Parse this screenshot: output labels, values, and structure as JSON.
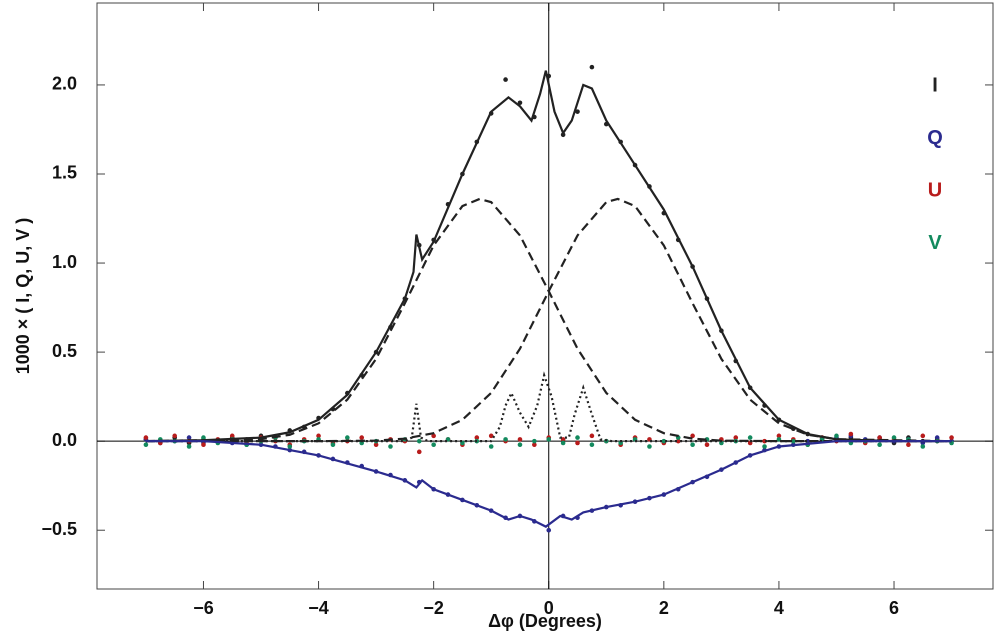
{
  "chart_data": {
    "type": "scatter",
    "x_label": "Δφ  (Degrees)",
    "y_label": "1000 × ( I, Q, U, V )",
    "xlim": [
      -7.85,
      7.72
    ],
    "ylim": [
      -0.83,
      2.46
    ],
    "xticks": [
      {
        "value": -6,
        "label": "−6"
      },
      {
        "value": -4,
        "label": "−4"
      },
      {
        "value": -2,
        "label": "−2"
      },
      0,
      2,
      4,
      6
    ],
    "yticks": [
      {
        "value": -0.5,
        "label": "−0.5"
      },
      {
        "value": 0,
        "label": "0.0"
      },
      0.5,
      {
        "value": 1,
        "label": "1.0"
      },
      1.5,
      {
        "value": 2,
        "label": "2.0"
      }
    ],
    "legend": "top-right",
    "x": [
      -7,
      -6.75,
      -6.5,
      -6.25,
      -6,
      -5.75,
      -5.5,
      -5.25,
      -5,
      -4.75,
      -4.5,
      -4.25,
      -4,
      -3.75,
      -3.5,
      -3.25,
      -3,
      -2.75,
      -2.5,
      -2.25,
      -2,
      -1.75,
      -1.5,
      -1.25,
      -1,
      -0.75,
      -0.5,
      -0.25,
      0,
      0.25,
      0.5,
      0.75,
      1,
      1.25,
      1.5,
      1.75,
      2,
      2.25,
      2.5,
      2.75,
      3,
      3.25,
      3.5,
      3.75,
      4,
      4.25,
      4.5,
      4.75,
      5,
      5.25,
      5.5,
      5.75,
      6,
      6.25,
      6.5,
      6.75,
      7
    ],
    "series": [
      {
        "name": "I",
        "color": "#222222",
        "mode": "points",
        "values": [
          0.01,
          0,
          0.02,
          -0.01,
          0.01,
          0,
          0.02,
          0.01,
          0.03,
          0.02,
          0.06,
          0.08,
          0.13,
          0.18,
          0.27,
          0.37,
          0.5,
          0.64,
          0.8,
          1.1,
          1.13,
          1.33,
          1.5,
          1.68,
          1.84,
          2.03,
          1.9,
          1.82,
          2.05,
          1.72,
          1.85,
          2.1,
          1.78,
          1.68,
          1.55,
          1.43,
          1.28,
          1.13,
          0.98,
          0.8,
          0.62,
          0.45,
          0.3,
          0.2,
          0.12,
          0.07,
          0.04,
          0.02,
          0.01,
          0.02,
          0,
          0.01,
          -0.01,
          0.02,
          0,
          0.01,
          0
        ]
      },
      {
        "name": "Q",
        "color": "#2b2b8f",
        "mode": "points",
        "values": [
          0.01,
          -0.01,
          0,
          0.02,
          -0.01,
          0,
          -0.01,
          -0.02,
          -0.02,
          -0.03,
          -0.05,
          -0.06,
          -0.08,
          -0.1,
          -0.12,
          -0.14,
          -0.17,
          -0.19,
          -0.22,
          -0.23,
          -0.27,
          -0.3,
          -0.33,
          -0.36,
          -0.39,
          -0.43,
          -0.42,
          -0.45,
          -0.5,
          -0.42,
          -0.43,
          -0.39,
          -0.37,
          -0.36,
          -0.34,
          -0.32,
          -0.3,
          -0.27,
          -0.23,
          -0.2,
          -0.16,
          -0.12,
          -0.08,
          -0.05,
          -0.03,
          -0.02,
          0,
          0.01,
          0.02,
          0.03,
          0.01,
          0.02,
          0,
          0.01,
          -0.01,
          0.02,
          0
        ]
      },
      {
        "name": "U",
        "color": "#b81c1c",
        "mode": "points",
        "values": [
          0.02,
          -0.01,
          0.03,
          0,
          -0.02,
          0.01,
          0.03,
          -0.01,
          0.02,
          0,
          -0.02,
          0.01,
          0.03,
          -0.01,
          0,
          0.02,
          -0.02,
          0.01,
          0,
          -0.06,
          0.03,
          0.01,
          -0.02,
          0.02,
          0.03,
          0,
          0.01,
          -0.02,
          0.02,
          0.01,
          -0.01,
          0.03,
          0,
          -0.02,
          0.02,
          0.01,
          -0.01,
          0,
          0.03,
          -0.02,
          0.01,
          0.02,
          -0.01,
          0,
          0.03,
          0.01,
          -0.02,
          0.02,
          0,
          0.04,
          -0.01,
          0.02,
          0.01,
          -0.02,
          0.03,
          0,
          0.02
        ]
      },
      {
        "name": "V",
        "color": "#138a5e",
        "mode": "points",
        "values": [
          -0.02,
          0.01,
          0,
          -0.03,
          0.02,
          -0.01,
          0.01,
          -0.02,
          0,
          0.02,
          -0.03,
          0,
          0.01,
          -0.02,
          0.02,
          -0.01,
          0,
          -0.03,
          0.01,
          0,
          -0.02,
          0.01,
          -0.01,
          0,
          -0.03,
          0.01,
          -0.02,
          0,
          0.01,
          -0.01,
          0.02,
          -0.02,
          0,
          -0.01,
          0.01,
          -0.03,
          0,
          0.02,
          -0.02,
          0.01,
          -0.01,
          0,
          0.02,
          -0.03,
          0.01,
          0,
          -0.02,
          0.01,
          0.03,
          -0.01,
          0,
          -0.02,
          0.02,
          0.01,
          -0.03,
          0,
          -0.01
        ]
      },
      {
        "color": "#222222",
        "mode": "line",
        "dash": "dashed",
        "x": [
          -7,
          -5,
          -4.5,
          -4,
          -3.5,
          -3,
          -2.5,
          -2,
          -1.5,
          -1.2,
          -1,
          -0.5,
          0,
          0.5,
          1,
          1.5,
          2,
          2.5,
          3,
          4,
          7
        ],
        "values": [
          0,
          0.011,
          0.036,
          0.1,
          0.233,
          0.462,
          0.774,
          1.099,
          1.32,
          1.36,
          1.342,
          1.155,
          0.842,
          0.519,
          0.271,
          0.12,
          0.045,
          0.014,
          0.003,
          0,
          0
        ]
      },
      {
        "color": "#222222",
        "mode": "line",
        "dash": "dashed",
        "x": [
          -7,
          -4,
          -3,
          -2.5,
          -2,
          -1.5,
          -1,
          -0.5,
          0,
          0.5,
          1,
          1.2,
          1.5,
          2,
          2.5,
          3,
          3.5,
          4,
          4.5,
          5,
          7
        ],
        "values": [
          0,
          0,
          0.003,
          0.014,
          0.045,
          0.12,
          0.271,
          0.519,
          0.842,
          1.155,
          1.342,
          1.36,
          1.32,
          1.099,
          0.774,
          0.462,
          0.233,
          0.1,
          0.036,
          0.011,
          0
        ]
      },
      {
        "color": "#222222",
        "mode": "line",
        "dash": "dotted",
        "x": [
          -7,
          -2.5,
          -2.38,
          -2.3,
          -2.22,
          -2.1,
          -1,
          -0.85,
          -0.75,
          -0.65,
          -0.5,
          -0.35,
          -0.2,
          -0.08,
          0.05,
          0.2,
          0.35,
          0.45,
          0.6,
          0.75,
          0.9,
          1.1,
          7
        ],
        "values": [
          0,
          0,
          0.02,
          0.21,
          0.02,
          0,
          0,
          0.08,
          0.2,
          0.27,
          0.16,
          0.08,
          0.2,
          0.37,
          0.25,
          0.02,
          0.02,
          0.15,
          0.3,
          0.15,
          0.01,
          0,
          0
        ]
      },
      {
        "color": "#222222",
        "mode": "line",
        "dash": "solid",
        "x": [
          -7,
          -6,
          -5,
          -4.5,
          -4,
          -3.5,
          -3,
          -2.5,
          -2.35,
          -2.3,
          -2.2,
          -2,
          -1.5,
          -1,
          -0.7,
          -0.5,
          -0.3,
          -0.15,
          -0.05,
          0.1,
          0.25,
          0.4,
          0.6,
          0.75,
          1,
          1.5,
          2,
          2.5,
          3,
          3.5,
          4,
          4.5,
          5,
          6,
          7
        ],
        "values": [
          0,
          0.005,
          0.02,
          0.05,
          0.12,
          0.26,
          0.5,
          0.8,
          0.95,
          1.16,
          1.02,
          1.12,
          1.5,
          1.85,
          1.93,
          1.88,
          1.8,
          1.95,
          2.08,
          1.85,
          1.73,
          1.8,
          2,
          1.98,
          1.8,
          1.55,
          1.3,
          0.98,
          0.62,
          0.3,
          0.12,
          0.04,
          0.01,
          0,
          0
        ]
      },
      {
        "color": "#2b2b8f",
        "mode": "line",
        "dash": "solid",
        "x": [
          -7,
          -6,
          -5,
          -4,
          -3,
          -2.5,
          -2.3,
          -2.2,
          -2,
          -1.5,
          -1,
          -0.7,
          -0.5,
          -0.3,
          -0.05,
          0.2,
          0.4,
          0.6,
          1,
          1.5,
          2,
          2.5,
          3,
          3.5,
          4,
          5,
          6,
          7
        ],
        "values": [
          0,
          0,
          -0.02,
          -0.08,
          -0.17,
          -0.22,
          -0.26,
          -0.22,
          -0.27,
          -0.33,
          -0.39,
          -0.44,
          -0.42,
          -0.44,
          -0.48,
          -0.42,
          -0.44,
          -0.4,
          -0.37,
          -0.34,
          -0.3,
          -0.23,
          -0.16,
          -0.08,
          -0.03,
          0,
          0,
          0
        ]
      }
    ]
  }
}
